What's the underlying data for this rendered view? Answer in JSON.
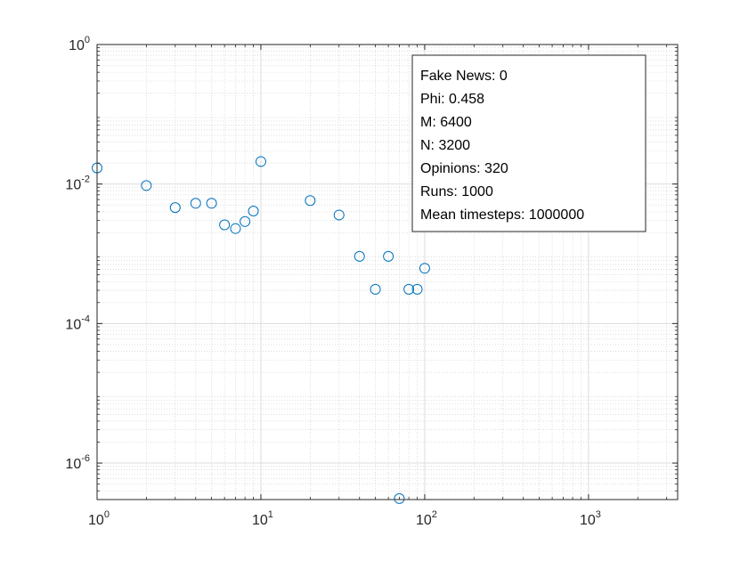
{
  "chart_data": {
    "type": "scatter",
    "x_scale": "log",
    "y_scale": "log",
    "xlim": [
      1,
      3500
    ],
    "ylim": [
      3e-07,
      1
    ],
    "grid": true,
    "minor_grid": true,
    "marker": "open-circle",
    "series_color": "#0072BD",
    "x_ticks": [
      {
        "value": 1,
        "base": "10",
        "exp": "0"
      },
      {
        "value": 10,
        "base": "10",
        "exp": "1"
      },
      {
        "value": 100,
        "base": "10",
        "exp": "2"
      },
      {
        "value": 1000,
        "base": "10",
        "exp": "3"
      }
    ],
    "y_ticks": [
      {
        "value": 1,
        "base": "10",
        "exp": "0"
      },
      {
        "value": 0.01,
        "base": "10",
        "exp": "-2"
      },
      {
        "value": 0.0001,
        "base": "10",
        "exp": "-4"
      },
      {
        "value": 1e-06,
        "base": "10",
        "exp": "-6"
      }
    ],
    "points": [
      {
        "x": 1,
        "y": 0.017
      },
      {
        "x": 2,
        "y": 0.0095
      },
      {
        "x": 3,
        "y": 0.0046
      },
      {
        "x": 4,
        "y": 0.0053
      },
      {
        "x": 5,
        "y": 0.0053
      },
      {
        "x": 6,
        "y": 0.0026
      },
      {
        "x": 7,
        "y": 0.0023
      },
      {
        "x": 8,
        "y": 0.0029
      },
      {
        "x": 9,
        "y": 0.0041
      },
      {
        "x": 10,
        "y": 0.021
      },
      {
        "x": 20,
        "y": 0.0058
      },
      {
        "x": 30,
        "y": 0.0036
      },
      {
        "x": 40,
        "y": 0.00092
      },
      {
        "x": 50,
        "y": 0.00031
      },
      {
        "x": 60,
        "y": 0.00092
      },
      {
        "x": 70,
        "y": 3.1e-07
      },
      {
        "x": 80,
        "y": 0.00031
      },
      {
        "x": 90,
        "y": 0.00031
      },
      {
        "x": 100,
        "y": 0.00062
      }
    ],
    "annotation": {
      "placement": "top-right",
      "lines": [
        "Fake News: 0",
        "Phi: 0.458",
        "M: 6400",
        "N: 3200",
        "Opinions: 320",
        "Runs: 1000",
        "Mean timesteps: 1000000"
      ]
    }
  }
}
